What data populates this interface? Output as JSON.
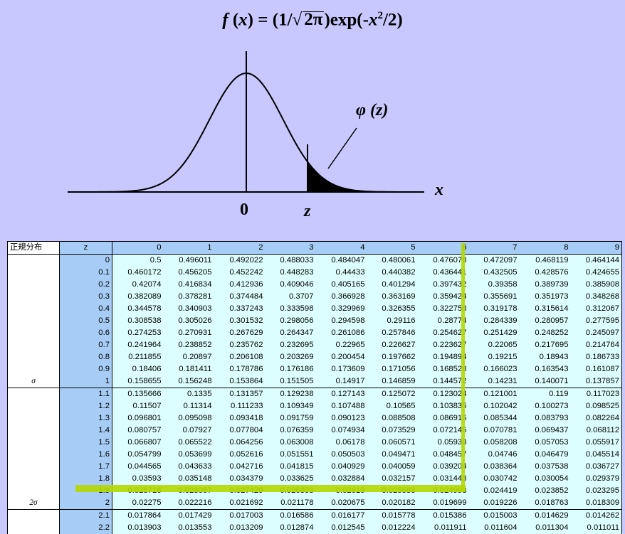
{
  "formula": {
    "f": "f",
    "x": "x",
    "eq": "= (1/",
    "sqrt_arg": "2π",
    "close": ")exp(-",
    "x2": "x",
    "exp": "2",
    "tail": "/2)"
  },
  "figure_labels": {
    "phi": "φ",
    "phi_arg": "(z)",
    "zero": "0",
    "z": "z",
    "x_axis": "x"
  },
  "table": {
    "title": "正規分布",
    "z_header": "z",
    "col_headers": [
      "0",
      "1",
      "2",
      "3",
      "4",
      "5",
      "6",
      "7",
      "8",
      "9"
    ],
    "rows": [
      {
        "z": "0",
        "v": [
          "0.5",
          "0.496011",
          "0.492022",
          "0.488033",
          "0.484047",
          "0.480061",
          "0.476078",
          "0.472097",
          "0.468119",
          "0.464144"
        ]
      },
      {
        "z": "0.1",
        "v": [
          "0.460172",
          "0.456205",
          "0.452242",
          "0.448283",
          "0.44433",
          "0.440382",
          "0.436441",
          "0.432505",
          "0.428576",
          "0.424655"
        ]
      },
      {
        "z": "0.2",
        "v": [
          "0.42074",
          "0.416834",
          "0.412936",
          "0.409046",
          "0.405165",
          "0.401294",
          "0.397432",
          "0.39358",
          "0.389739",
          "0.385908"
        ]
      },
      {
        "z": "0.3",
        "v": [
          "0.382089",
          "0.378281",
          "0.374484",
          "0.3707",
          "0.366928",
          "0.363169",
          "0.359424",
          "0.355691",
          "0.351973",
          "0.348268"
        ]
      },
      {
        "z": "0.4",
        "v": [
          "0.344578",
          "0.340903",
          "0.337243",
          "0.333598",
          "0.329969",
          "0.326355",
          "0.322758",
          "0.319178",
          "0.315614",
          "0.312067"
        ]
      },
      {
        "z": "0.5",
        "v": [
          "0.308538",
          "0.305026",
          "0.301532",
          "0.298056",
          "0.294598",
          "0.29116",
          "0.28774",
          "0.284339",
          "0.280957",
          "0.277595"
        ]
      },
      {
        "z": "0.6",
        "v": [
          "0.274253",
          "0.270931",
          "0.267629",
          "0.264347",
          "0.261086",
          "0.257846",
          "0.254627",
          "0.251429",
          "0.248252",
          "0.245097"
        ]
      },
      {
        "z": "0.7",
        "v": [
          "0.241964",
          "0.238852",
          "0.235762",
          "0.232695",
          "0.22965",
          "0.226627",
          "0.223627",
          "0.22065",
          "0.217695",
          "0.214764"
        ]
      },
      {
        "z": "0.8",
        "v": [
          "0.211855",
          "0.20897",
          "0.206108",
          "0.203269",
          "0.200454",
          "0.197662",
          "0.194894",
          "0.19215",
          "0.18943",
          "0.186733"
        ]
      },
      {
        "z": "0.9",
        "v": [
          "0.18406",
          "0.181411",
          "0.178786",
          "0.176186",
          "0.173609",
          "0.171056",
          "0.168528",
          "0.166023",
          "0.163543",
          "0.161087"
        ]
      },
      {
        "z": "1",
        "v": [
          "0.158655",
          "0.156248",
          "0.153864",
          "0.151505",
          "0.14917",
          "0.146859",
          "0.144572",
          "0.14231",
          "0.140071",
          "0.137857"
        ],
        "label": "σ"
      },
      {
        "z": "1.1",
        "v": [
          "0.135666",
          "0.1335",
          "0.131357",
          "0.129238",
          "0.127143",
          "0.125072",
          "0.123024",
          "0.121001",
          "0.119",
          "0.117023"
        ]
      },
      {
        "z": "1.2",
        "v": [
          "0.11507",
          "0.11314",
          "0.111233",
          "0.109349",
          "0.107488",
          "0.10565",
          "0.103835",
          "0.102042",
          "0.100273",
          "0.098525"
        ]
      },
      {
        "z": "1.3",
        "v": [
          "0.096801",
          "0.095098",
          "0.093418",
          "0.091759",
          "0.090123",
          "0.088508",
          "0.086915",
          "0.085344",
          "0.083793",
          "0.082264"
        ]
      },
      {
        "z": "1.4",
        "v": [
          "0.080757",
          "0.07927",
          "0.077804",
          "0.076359",
          "0.074934",
          "0.073529",
          "0.072145",
          "0.070781",
          "0.069437",
          "0.068112"
        ]
      },
      {
        "z": "1.5",
        "v": [
          "0.066807",
          "0.065522",
          "0.064256",
          "0.063008",
          "0.06178",
          "0.060571",
          "0.05938",
          "0.058208",
          "0.057053",
          "0.055917"
        ]
      },
      {
        "z": "1.6",
        "v": [
          "0.054799",
          "0.053699",
          "0.052616",
          "0.051551",
          "0.050503",
          "0.049471",
          "0.048457",
          "0.04746",
          "0.046479",
          "0.045514"
        ]
      },
      {
        "z": "1.7",
        "v": [
          "0.044565",
          "0.043633",
          "0.042716",
          "0.041815",
          "0.040929",
          "0.040059",
          "0.039204",
          "0.038364",
          "0.037538",
          "0.036727"
        ]
      },
      {
        "z": "1.8",
        "v": [
          "0.03593",
          "0.035148",
          "0.034379",
          "0.033625",
          "0.032884",
          "0.032157",
          "0.031443",
          "0.030742",
          "0.030054",
          "0.029379"
        ]
      },
      {
        "z": "1.9",
        "v": [
          "0.028716",
          "0.028067",
          "0.027429",
          "0.026803",
          "0.02619",
          "0.025588",
          "0.024998",
          "0.024419",
          "0.023852",
          "0.023295"
        ]
      },
      {
        "z": "2",
        "v": [
          "0.02275",
          "0.022216",
          "0.021692",
          "0.021178",
          "0.020675",
          "0.020182",
          "0.019699",
          "0.019226",
          "0.018763",
          "0.018309"
        ],
        "label": "2σ"
      },
      {
        "z": "2.1",
        "v": [
          "0.017864",
          "0.017429",
          "0.017003",
          "0.016586",
          "0.016177",
          "0.015778",
          "0.015386",
          "0.015003",
          "0.014629",
          "0.014262"
        ]
      },
      {
        "z": "2.2",
        "v": [
          "0.013903",
          "0.013553",
          "0.013209",
          "0.012874",
          "0.012545",
          "0.012224",
          "0.011911",
          "0.011604",
          "0.011304",
          "0.011011"
        ]
      }
    ]
  }
}
